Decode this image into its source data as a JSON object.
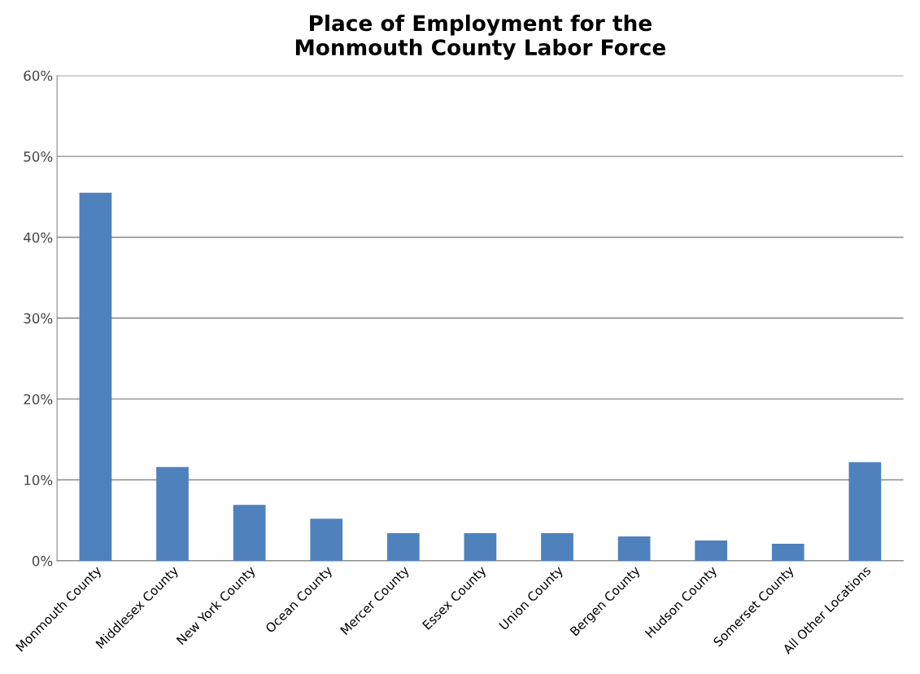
{
  "chart_data": {
    "type": "bar",
    "title": "Place of Employment for the\nMonmouth County Labor Force",
    "categories": [
      "Monmouth County",
      "Middlesex County",
      "New York County",
      "Ocean County",
      "Mercer County",
      "Essex County",
      "Union County",
      "Bergen County",
      "Hudson County",
      "Somerset County",
      "All Other Locations"
    ],
    "values": [
      45.5,
      11.6,
      6.9,
      5.2,
      3.4,
      3.4,
      3.4,
      3.0,
      2.5,
      2.1,
      12.2
    ],
    "color": "#4f81bd",
    "ylim": [
      0,
      60
    ],
    "yticks": [
      {
        "value": 0,
        "label": "0%"
      },
      {
        "value": 10,
        "label": "10%"
      },
      {
        "value": 20,
        "label": "20%"
      },
      {
        "value": 30,
        "label": "30%"
      },
      {
        "value": 40,
        "label": "40%"
      },
      {
        "value": 50,
        "label": "50%"
      },
      {
        "value": 60,
        "label": "60%"
      }
    ],
    "grid": "y",
    "legend": false
  }
}
